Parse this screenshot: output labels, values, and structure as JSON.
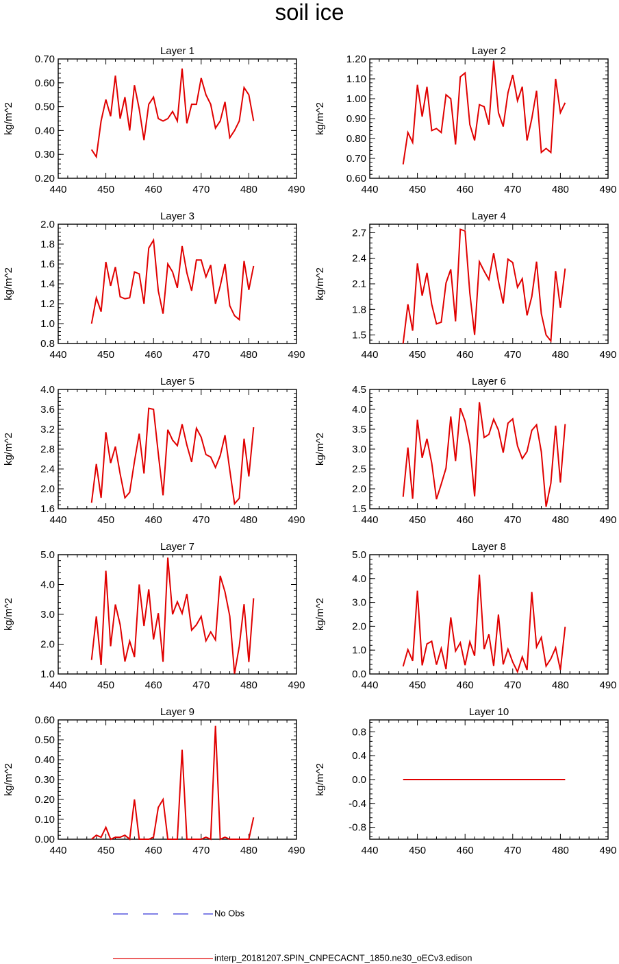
{
  "title": "soil ice",
  "legend": {
    "obs_label": "No Obs",
    "obs_color": "#0000cc",
    "model_label": "interp_20181207.SPIN_CNPECACNT_1850.ne30_oECv3.edison",
    "model_color": "#e00000"
  },
  "chart_data": [
    {
      "type": "line",
      "title": "Layer 1",
      "ylabel": "kg/m^2",
      "xlim": [
        440,
        490
      ],
      "xticks": [
        "440",
        "450",
        "460",
        "470",
        "480",
        "490"
      ],
      "ylim": [
        0.2,
        0.7
      ],
      "yticks": [
        "0.20",
        "0.30",
        "0.40",
        "0.50",
        "0.60",
        "0.70"
      ],
      "x": [
        447,
        448,
        449,
        450,
        451,
        452,
        453,
        454,
        455,
        456,
        457,
        458,
        459,
        460,
        461,
        462,
        463,
        464,
        465,
        466,
        467,
        468,
        469,
        470,
        471,
        472,
        473,
        474,
        475,
        476,
        477,
        478,
        479,
        480,
        481
      ],
      "series": [
        {
          "name": "interp_20181207.SPIN_CNPECACNT_1850.ne30_oECv3.edison",
          "values": [
            0.32,
            0.29,
            0.44,
            0.53,
            0.46,
            0.63,
            0.45,
            0.54,
            0.4,
            0.59,
            0.49,
            0.36,
            0.51,
            0.54,
            0.45,
            0.44,
            0.45,
            0.48,
            0.44,
            0.66,
            0.43,
            0.51,
            0.51,
            0.62,
            0.55,
            0.51,
            0.41,
            0.44,
            0.52,
            0.37,
            0.4,
            0.44,
            0.58,
            0.55,
            0.44
          ]
        }
      ]
    },
    {
      "type": "line",
      "title": "Layer 2",
      "ylabel": "kg/m^2",
      "xlim": [
        440,
        490
      ],
      "xticks": [
        "440",
        "450",
        "460",
        "470",
        "480",
        "490"
      ],
      "ylim": [
        0.6,
        1.2
      ],
      "yticks": [
        "0.60",
        "0.70",
        "0.80",
        "0.90",
        "1.00",
        "1.10",
        "1.20"
      ],
      "x": [
        447,
        448,
        449,
        450,
        451,
        452,
        453,
        454,
        455,
        456,
        457,
        458,
        459,
        460,
        461,
        462,
        463,
        464,
        465,
        466,
        467,
        468,
        469,
        470,
        471,
        472,
        473,
        474,
        475,
        476,
        477,
        478,
        479,
        480,
        481
      ],
      "series": [
        {
          "name": "interp_20181207.SPIN_CNPECACNT_1850.ne30_oECv3.edison",
          "values": [
            0.67,
            0.83,
            0.78,
            1.07,
            0.91,
            1.06,
            0.84,
            0.85,
            0.83,
            1.02,
            1.0,
            0.77,
            1.11,
            1.13,
            0.87,
            0.79,
            0.97,
            0.96,
            0.87,
            1.19,
            0.93,
            0.86,
            1.03,
            1.12,
            0.99,
            1.06,
            0.79,
            0.9,
            1.04,
            0.73,
            0.75,
            0.73,
            1.1,
            0.93,
            0.98
          ]
        }
      ]
    },
    {
      "type": "line",
      "title": "Layer 3",
      "ylabel": "kg/m^2",
      "xlim": [
        440,
        490
      ],
      "xticks": [
        "440",
        "450",
        "460",
        "470",
        "480",
        "490"
      ],
      "ylim": [
        0.8,
        2.0
      ],
      "yticks": [
        "0.8",
        "1.0",
        "1.2",
        "1.4",
        "1.6",
        "1.8",
        "2.0"
      ],
      "x": [
        447,
        448,
        449,
        450,
        451,
        452,
        453,
        454,
        455,
        456,
        457,
        458,
        459,
        460,
        461,
        462,
        463,
        464,
        465,
        466,
        467,
        468,
        469,
        470,
        471,
        472,
        473,
        474,
        475,
        476,
        477,
        478,
        479,
        480,
        481
      ],
      "series": [
        {
          "name": "interp_20181207.SPIN_CNPECACNT_1850.ne30_oECv3.edison",
          "values": [
            1.0,
            1.26,
            1.12,
            1.62,
            1.38,
            1.57,
            1.27,
            1.25,
            1.26,
            1.52,
            1.5,
            1.2,
            1.76,
            1.84,
            1.33,
            1.1,
            1.6,
            1.52,
            1.36,
            1.78,
            1.51,
            1.33,
            1.64,
            1.64,
            1.47,
            1.59,
            1.2,
            1.38,
            1.6,
            1.18,
            1.08,
            1.04,
            1.63,
            1.34,
            1.58
          ]
        }
      ]
    },
    {
      "type": "line",
      "title": "Layer 4",
      "ylabel": "kg/m^2",
      "xlim": [
        440,
        490
      ],
      "xticks": [
        "440",
        "450",
        "460",
        "470",
        "480",
        "490"
      ],
      "ylim": [
        1.4,
        2.8
      ],
      "yticks": [
        "1.5",
        "1.8",
        "2.1",
        "2.4",
        "2.7"
      ],
      "ytick_values": [
        1.5,
        1.8,
        2.1,
        2.4,
        2.7
      ],
      "x": [
        447,
        448,
        449,
        450,
        451,
        452,
        453,
        454,
        455,
        456,
        457,
        458,
        459,
        460,
        461,
        462,
        463,
        464,
        465,
        466,
        467,
        468,
        469,
        470,
        471,
        472,
        473,
        474,
        475,
        476,
        477,
        478,
        479,
        480,
        481
      ],
      "series": [
        {
          "name": "interp_20181207.SPIN_CNPECACNT_1850.ne30_oECv3.edison",
          "values": [
            1.4,
            1.86,
            1.55,
            2.34,
            1.96,
            2.23,
            1.86,
            1.63,
            1.65,
            2.11,
            2.27,
            1.66,
            2.74,
            2.72,
            1.99,
            1.5,
            2.36,
            2.25,
            2.15,
            2.46,
            2.13,
            1.87,
            2.39,
            2.35,
            2.06,
            2.16,
            1.73,
            1.95,
            2.36,
            1.75,
            1.5,
            1.43,
            2.25,
            1.82,
            2.28
          ]
        }
      ]
    },
    {
      "type": "line",
      "title": "Layer 5",
      "ylabel": "kg/m^2",
      "xlim": [
        440,
        490
      ],
      "xticks": [
        "440",
        "450",
        "460",
        "470",
        "480",
        "490"
      ],
      "ylim": [
        1.6,
        4.0
      ],
      "yticks": [
        "1.6",
        "2.0",
        "2.4",
        "2.8",
        "3.2",
        "3.6",
        "4.0"
      ],
      "x": [
        447,
        448,
        449,
        450,
        451,
        452,
        453,
        454,
        455,
        456,
        457,
        458,
        459,
        460,
        461,
        462,
        463,
        464,
        465,
        466,
        467,
        468,
        469,
        470,
        471,
        472,
        473,
        474,
        475,
        476,
        477,
        478,
        479,
        480,
        481
      ],
      "series": [
        {
          "name": "interp_20181207.SPIN_CNPECACNT_1850.ne30_oECv3.edison",
          "values": [
            1.72,
            2.5,
            1.82,
            3.14,
            2.52,
            2.85,
            2.3,
            1.82,
            1.93,
            2.55,
            3.11,
            2.31,
            3.62,
            3.6,
            2.71,
            1.87,
            3.19,
            2.98,
            2.87,
            3.3,
            2.88,
            2.54,
            3.22,
            3.04,
            2.69,
            2.64,
            2.43,
            2.67,
            3.08,
            2.38,
            1.7,
            1.81,
            3.01,
            2.25,
            3.24
          ]
        }
      ]
    },
    {
      "type": "line",
      "title": "Layer 6",
      "ylabel": "kg/m^2",
      "xlim": [
        440,
        490
      ],
      "xticks": [
        "440",
        "450",
        "460",
        "470",
        "480",
        "490"
      ],
      "ylim": [
        1.5,
        4.5
      ],
      "yticks": [
        "1.5",
        "2.0",
        "2.5",
        "3.0",
        "3.5",
        "4.0",
        "4.5"
      ],
      "x": [
        447,
        448,
        449,
        450,
        451,
        452,
        453,
        454,
        455,
        456,
        457,
        458,
        459,
        460,
        461,
        462,
        463,
        464,
        465,
        466,
        467,
        468,
        469,
        470,
        471,
        472,
        473,
        474,
        475,
        476,
        477,
        478,
        479,
        480,
        481
      ],
      "series": [
        {
          "name": "interp_20181207.SPIN_CNPECACNT_1850.ne30_oECv3.edison",
          "values": [
            1.8,
            3.04,
            1.75,
            3.74,
            2.78,
            3.26,
            2.65,
            1.74,
            2.12,
            2.52,
            3.82,
            2.7,
            4.03,
            3.7,
            3.11,
            1.81,
            4.18,
            3.29,
            3.37,
            3.75,
            3.48,
            2.91,
            3.65,
            3.76,
            3.08,
            2.76,
            2.94,
            3.47,
            3.61,
            2.93,
            1.55,
            2.14,
            3.59,
            2.16,
            3.63
          ]
        }
      ]
    },
    {
      "type": "line",
      "title": "Layer 7",
      "ylabel": "kg/m^2",
      "xlim": [
        440,
        490
      ],
      "xticks": [
        "440",
        "450",
        "460",
        "470",
        "480",
        "490"
      ],
      "ylim": [
        1.0,
        5.0
      ],
      "yticks": [
        "1.0",
        "2.0",
        "3.0",
        "4.0",
        "5.0"
      ],
      "x": [
        447,
        448,
        449,
        450,
        451,
        452,
        453,
        454,
        455,
        456,
        457,
        458,
        459,
        460,
        461,
        462,
        463,
        464,
        465,
        466,
        467,
        468,
        469,
        470,
        471,
        472,
        473,
        474,
        475,
        476,
        477,
        478,
        479,
        480,
        481
      ],
      "series": [
        {
          "name": "interp_20181207.SPIN_CNPECACNT_1850.ne30_oECv3.edison",
          "values": [
            1.47,
            2.93,
            1.3,
            4.46,
            1.93,
            3.33,
            2.65,
            1.42,
            2.1,
            1.57,
            4.0,
            2.61,
            3.84,
            2.16,
            3.04,
            1.41,
            4.9,
            3.0,
            3.42,
            3.03,
            3.68,
            2.47,
            2.65,
            2.93,
            2.11,
            2.41,
            2.14,
            4.29,
            3.75,
            2.94,
            1.01,
            1.94,
            3.34,
            1.4,
            3.54
          ]
        }
      ]
    },
    {
      "type": "line",
      "title": "Layer 8",
      "ylabel": "kg/m^2",
      "xlim": [
        440,
        490
      ],
      "xticks": [
        "440",
        "450",
        "460",
        "470",
        "480",
        "490"
      ],
      "ylim": [
        0.0,
        5.0
      ],
      "yticks": [
        "0.0",
        "1.0",
        "2.0",
        "3.0",
        "4.0",
        "5.0"
      ],
      "x": [
        447,
        448,
        449,
        450,
        451,
        452,
        453,
        454,
        455,
        456,
        457,
        458,
        459,
        460,
        461,
        462,
        463,
        464,
        465,
        466,
        467,
        468,
        469,
        470,
        471,
        472,
        473,
        474,
        475,
        476,
        477,
        478,
        479,
        480,
        481
      ],
      "series": [
        {
          "name": "interp_20181207.SPIN_CNPECACNT_1850.ne30_oECv3.edison",
          "values": [
            0.32,
            1.02,
            0.55,
            3.49,
            0.36,
            1.26,
            1.37,
            0.39,
            1.07,
            0.2,
            2.37,
            0.96,
            1.31,
            0.37,
            1.35,
            0.76,
            4.16,
            1.04,
            1.66,
            0.34,
            2.49,
            0.4,
            1.04,
            0.5,
            0.09,
            0.72,
            0.17,
            3.44,
            1.13,
            1.53,
            0.33,
            0.64,
            1.1,
            0.17,
            1.98
          ]
        }
      ]
    },
    {
      "type": "line",
      "title": "Layer 9",
      "ylabel": "kg/m^2",
      "xlim": [
        440,
        490
      ],
      "xticks": [
        "440",
        "450",
        "460",
        "470",
        "480",
        "490"
      ],
      "ylim": [
        0.0,
        0.6
      ],
      "yticks": [
        "0.00",
        "0.10",
        "0.20",
        "0.30",
        "0.40",
        "0.50",
        "0.60"
      ],
      "x": [
        447,
        448,
        449,
        450,
        451,
        452,
        453,
        454,
        455,
        456,
        457,
        458,
        459,
        460,
        461,
        462,
        463,
        464,
        465,
        466,
        467,
        468,
        469,
        470,
        471,
        472,
        473,
        474,
        475,
        476,
        477,
        478,
        479,
        480,
        481
      ],
      "series": [
        {
          "name": "interp_20181207.SPIN_CNPECACNT_1850.ne30_oECv3.edison",
          "values": [
            0.0,
            0.02,
            0.01,
            0.06,
            0.0,
            0.01,
            0.01,
            0.02,
            0.0,
            0.2,
            0.0,
            0.0,
            0.0,
            0.01,
            0.16,
            0.2,
            0.0,
            0.0,
            0.0,
            0.45,
            0.0,
            0.0,
            0.0,
            0.0,
            0.01,
            0.0,
            0.57,
            0.0,
            0.01,
            0.0,
            0.0,
            0.0,
            0.0,
            0.0,
            0.11
          ]
        }
      ]
    },
    {
      "type": "line",
      "title": "Layer 10",
      "ylabel": "kg/m^2",
      "xlim": [
        440,
        490
      ],
      "xticks": [
        "440",
        "450",
        "460",
        "470",
        "480",
        "490"
      ],
      "ylim": [
        -1.0,
        1.0
      ],
      "yticks": [
        "-0.8",
        "-0.4",
        "0.0",
        "0.4",
        "0.8"
      ],
      "ytick_values": [
        -0.8,
        -0.4,
        0.0,
        0.4,
        0.8
      ],
      "x": [
        447,
        481
      ],
      "series": [
        {
          "name": "interp_20181207.SPIN_CNPECACNT_1850.ne30_oECv3.edison",
          "values": [
            0.0,
            0.0
          ]
        }
      ]
    }
  ]
}
